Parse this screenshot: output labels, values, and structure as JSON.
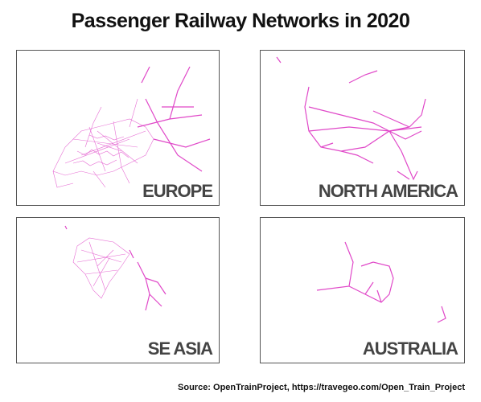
{
  "title": "Passenger Railway Networks in 2020",
  "panels": [
    {
      "label": "EUROPE"
    },
    {
      "label": "NORTH AMERICA"
    },
    {
      "label": "SE ASIA"
    },
    {
      "label": "AUSTRALIA"
    }
  ],
  "source": "Source: OpenTrainProject, https://travegeo.com/Open_Train_Project"
}
